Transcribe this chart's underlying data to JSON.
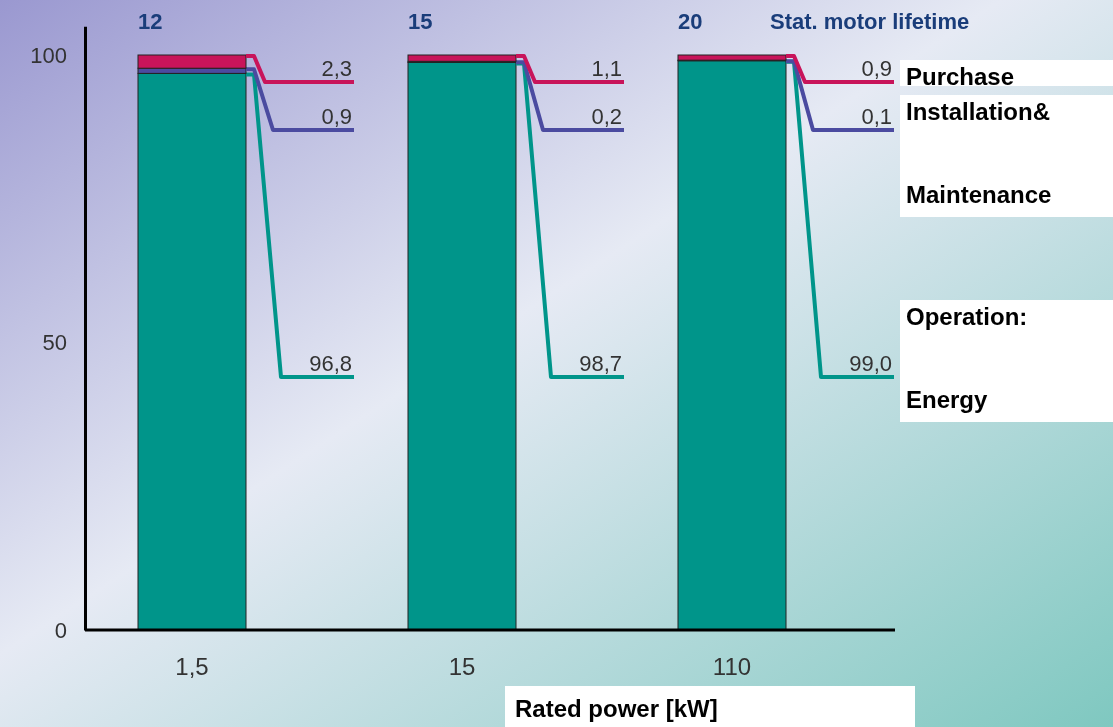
{
  "chart_data": {
    "type": "bar",
    "stacked": true,
    "xlabel": "Rated power [kW]",
    "categories": [
      "1,5",
      "15",
      "110"
    ],
    "series": [
      {
        "name": "Operation: Energy",
        "color": "#00958a",
        "values": [
          96.8,
          98.7,
          99.0
        ],
        "value_labels": [
          "96,8",
          "98,7",
          "99,0"
        ]
      },
      {
        "name": "Installation& Maintenance",
        "color": "#4b4ba0",
        "values": [
          0.9,
          0.2,
          0.1
        ],
        "value_labels": [
          "0,9",
          "0,2",
          "0,1"
        ]
      },
      {
        "name": "Purchase",
        "color": "#c8145a",
        "values": [
          2.3,
          1.1,
          0.9
        ],
        "value_labels": [
          "2,3",
          "1,1",
          "0,9"
        ]
      }
    ],
    "ylim": [
      0,
      105
    ],
    "yticks": [
      0,
      50,
      100
    ],
    "grid": false,
    "legend": "right",
    "annotations": [
      "12",
      "15",
      "20",
      "Stat. motor lifetime"
    ]
  }
}
